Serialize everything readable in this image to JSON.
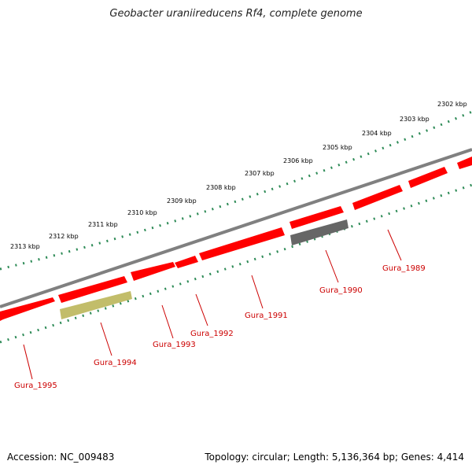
{
  "title": "Geobacter uraniireducens Rf4, complete genome",
  "footer": {
    "accession": "Accession: NC_009483",
    "summary": "Topology: circular; Length: 5,136,364 bp; Genes: 4,414"
  },
  "map": {
    "colors": {
      "backbone": "#7f7f7f",
      "gene_default": "#ff0000",
      "gene_gray": "#666666",
      "gene_olive": "#c2bd6a",
      "tick_major": "#228b22",
      "tick_minor": "#2e8b57",
      "label": "#cc0000"
    },
    "scale_labels": [
      "2313 kbp",
      "2312 kbp",
      "2311 kbp",
      "2310 kbp",
      "2309 kbp",
      "2308 kbp",
      "2307 kbp",
      "2306 kbp",
      "2305 kbp",
      "2304 kbp",
      "2303 kbp",
      "2302 kbp"
    ],
    "gene_labels": [
      "Gura_1995",
      "Gura_1994",
      "Gura_1993",
      "Gura_1992",
      "Gura_1991",
      "Gura_1990",
      "Gura_1989"
    ],
    "genes": [
      {
        "id": "g1",
        "color": "gene_default"
      },
      {
        "id": "g2",
        "color": "gene_default"
      },
      {
        "id": "g3",
        "color": "gene_default"
      },
      {
        "id": "g4",
        "color": "gene_default"
      },
      {
        "id": "g5",
        "color": "gene_default"
      },
      {
        "id": "g6",
        "color": "gene_default"
      },
      {
        "id": "g7",
        "color": "gene_default"
      },
      {
        "id": "g8",
        "color": "gene_default"
      },
      {
        "id": "g9",
        "color": "gene_default"
      },
      {
        "id": "g10",
        "color": "gene_olive"
      },
      {
        "id": "g11",
        "color": "gene_gray"
      }
    ]
  }
}
